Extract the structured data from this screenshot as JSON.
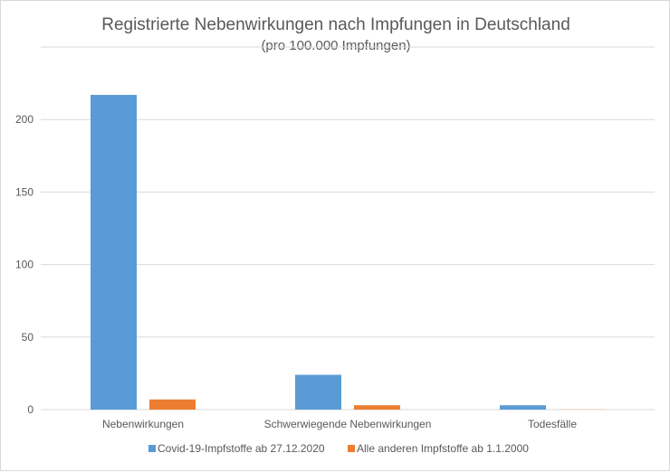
{
  "chart_data": {
    "type": "bar",
    "title": "Registrierte Nebenwirkungen nach Impfungen in Deutschland",
    "subtitle": "(pro 100.000 Impfungen)",
    "categories": [
      "Nebenwirkungen",
      "Schwerwiegende Nebenwirkungen",
      "Todesfälle"
    ],
    "series": [
      {
        "name": "Covid-19-Impfstoffe ab 27.12.2020",
        "color": "#5b9bd5",
        "values": [
          217,
          24,
          3
        ]
      },
      {
        "name": "Alle anderen Impfstoffe ab 1.1.2000",
        "color": "#ed7d31",
        "values": [
          7,
          3,
          0.1
        ]
      }
    ],
    "yticks": [
      "0",
      "50",
      "100",
      "150",
      "200"
    ],
    "ylim": [
      0,
      250
    ],
    "xlabel": "",
    "ylabel": "",
    "grid": true,
    "legend": "bottom",
    "gridline_color": "#d9d9d9",
    "text_color": "#595959"
  }
}
